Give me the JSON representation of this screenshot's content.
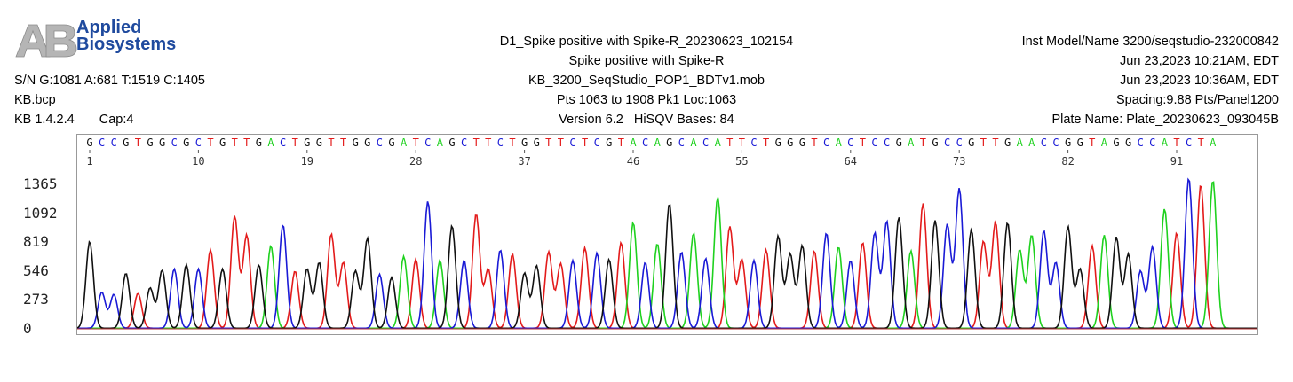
{
  "logo": {
    "line1": "Applied",
    "line2": "Biosystems",
    "icon": "ab-logo-icon"
  },
  "header": {
    "left": {
      "sn": "S/N G:1081 A:681 T:1519 C:1405",
      "file": "KB.bcp",
      "kb": "KB 1.4.2.4",
      "cap": "Cap:4"
    },
    "center": {
      "line1": "D1_Spike positive with Spike-R_20230623_102154",
      "line2": "Spike positive with Spike-R",
      "line3": "KB_3200_SeqStudio_POP1_BDTv1.mob",
      "line4": "Pts 1063 to 1908 Pk1 Loc:1063",
      "version": "Version 6.2",
      "hisqv": "HiSQV Bases: 84"
    },
    "right": {
      "line1": "Inst Model/Name 3200/seqstudio-232000842",
      "line2": "Jun 23,2023 10:21AM, EDT",
      "line3": "Jun 23,2023 10:36AM, EDT",
      "line4": "Spacing:9.88  Pts/Panel1200",
      "line5": "Plate Name: Plate_20230623_093045B"
    }
  },
  "chart_data": {
    "type": "line",
    "title": "",
    "sequence": "GCCGTGGCGCTGTTGACTGGTTGGCGATCAGCTTCTGGTTCTCGTACAGCACATTCTGGGTCACTCCGATGCCGTTGAACCGGTAGGCCATCTA",
    "base_index_labels": [
      "1",
      "10",
      "19",
      "28",
      "37",
      "46",
      "55",
      "64",
      "73",
      "82",
      "91"
    ],
    "yticks": [
      0,
      273,
      546,
      819,
      1092,
      1365
    ],
    "ylim": [
      0,
      1500
    ],
    "colors": {
      "A": "#1fd11f",
      "C": "#1a1ad6",
      "G": "#111111",
      "T": "#e31b1b"
    },
    "peak_heights": [
      820,
      340,
      320,
      520,
      330,
      380,
      550,
      560,
      600,
      560,
      740,
      560,
      1060,
      880,
      600,
      780,
      980,
      540,
      560,
      620,
      890,
      620,
      540,
      850,
      510,
      480,
      680,
      650,
      1200,
      640,
      970,
      640,
      1080,
      560,
      740,
      700,
      520,
      590,
      720,
      610,
      640,
      760,
      710,
      650,
      810,
      1000,
      620,
      800,
      1180,
      720,
      900,
      660,
      1240,
      960,
      650,
      640,
      740,
      870,
      700,
      780,
      730,
      900,
      770,
      640,
      810,
      900,
      1010,
      1050,
      730,
      1180,
      1020,
      980,
      1320,
      930,
      820,
      1000,
      1000,
      740,
      880,
      920,
      620,
      960,
      560,
      780,
      880,
      860,
      700,
      540,
      770,
      1130,
      900,
      1420,
      1360,
      1400
    ]
  }
}
